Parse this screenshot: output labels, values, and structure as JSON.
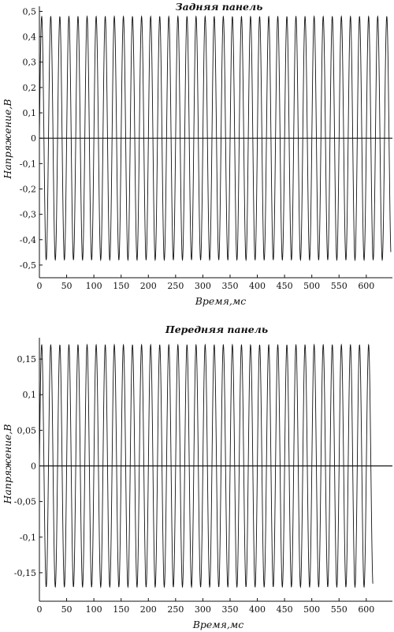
{
  "chart_data": [
    {
      "type": "line",
      "title": "Задняя панель",
      "xlabel": "Время,мс",
      "ylabel": "Напряжение,В",
      "xlim": [
        0,
        648
      ],
      "ylim": [
        -0.55,
        0.52
      ],
      "xticks": [
        0,
        50,
        100,
        150,
        200,
        250,
        300,
        350,
        400,
        450,
        500,
        550,
        600
      ],
      "yticks": [
        -0.5,
        -0.4,
        -0.3,
        -0.2,
        -0.1,
        0,
        0.1,
        0.2,
        0.3,
        0.4,
        0.5
      ],
      "xtick_labels": [
        "0",
        "50",
        "100",
        "150",
        "200",
        "250",
        "300",
        "350",
        "400",
        "450",
        "500",
        "550",
        "600"
      ],
      "ytick_labels": [
        "-0,5",
        "-0,4",
        "-0,3",
        "-0,2",
        "-0,1",
        "0",
        "0,1",
        "0,2",
        "0,3",
        "0,4",
        "0,5"
      ],
      "zero_line": true,
      "grid": false,
      "series": [
        {
          "signal": "sine",
          "amplitude": 0.48,
          "period_ms": 16.67,
          "x_start": 0,
          "x_end": 645,
          "color": "#111111"
        }
      ]
    },
    {
      "type": "line",
      "title": "Передняя панель",
      "xlabel": "Время,мс",
      "ylabel": "Напряжение,В",
      "xlim": [
        0,
        648
      ],
      "ylim": [
        -0.19,
        0.18
      ],
      "xticks": [
        0,
        50,
        100,
        150,
        200,
        250,
        300,
        350,
        400,
        450,
        500,
        550,
        600
      ],
      "yticks": [
        -0.15,
        -0.1,
        -0.05,
        0,
        0.05,
        0.1,
        0.15
      ],
      "xtick_labels": [
        "0",
        "50",
        "100",
        "150",
        "200",
        "250",
        "300",
        "350",
        "400",
        "450",
        "500",
        "550",
        "600"
      ],
      "ytick_labels": [
        "-0,15",
        "-0,1",
        "-0,05",
        "0",
        "0,05",
        "0,1",
        "0,15"
      ],
      "zero_line": true,
      "grid": false,
      "series": [
        {
          "signal": "sine",
          "amplitude": 0.17,
          "period_ms": 16.67,
          "x_start": 0,
          "x_end": 612,
          "color": "#111111"
        }
      ]
    }
  ]
}
